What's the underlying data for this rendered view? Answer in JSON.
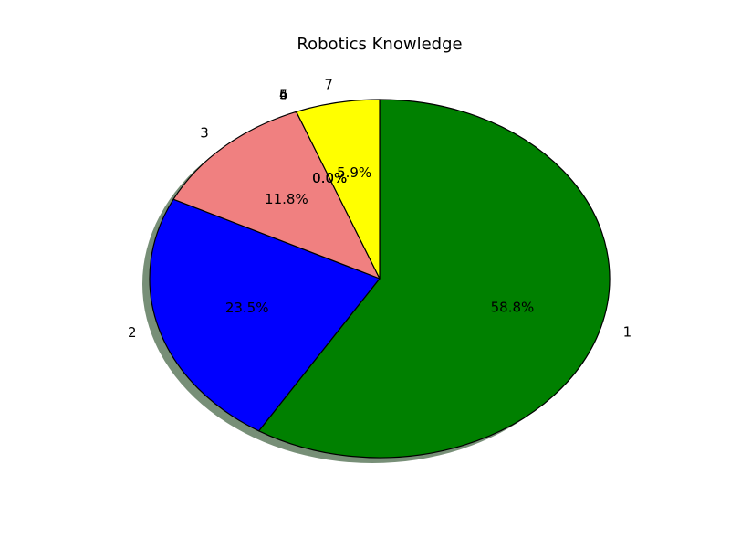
{
  "chart_data": {
    "type": "pie",
    "title": "Robotics Knowledge",
    "slices": [
      {
        "label": "1",
        "value": 58.8,
        "pct_label": "58.8%",
        "color": "#008000"
      },
      {
        "label": "2",
        "value": 23.5,
        "pct_label": "23.5%",
        "color": "#0000ff"
      },
      {
        "label": "3",
        "value": 11.8,
        "pct_label": "11.8%",
        "color": "#f08080"
      },
      {
        "label": "4",
        "value": 0.0,
        "pct_label": "0.0%",
        "color": "#ffa500"
      },
      {
        "label": "5",
        "value": 0.0,
        "pct_label": "0.0%",
        "color": "#800080"
      },
      {
        "label": "6",
        "value": 0.0,
        "pct_label": "0.0%",
        "color": "#00ffff"
      },
      {
        "label": "7",
        "value": 5.9,
        "pct_label": "5.9%",
        "color": "#ffff00"
      }
    ],
    "start": "top",
    "direction": "clockwise",
    "shadow": true
  }
}
